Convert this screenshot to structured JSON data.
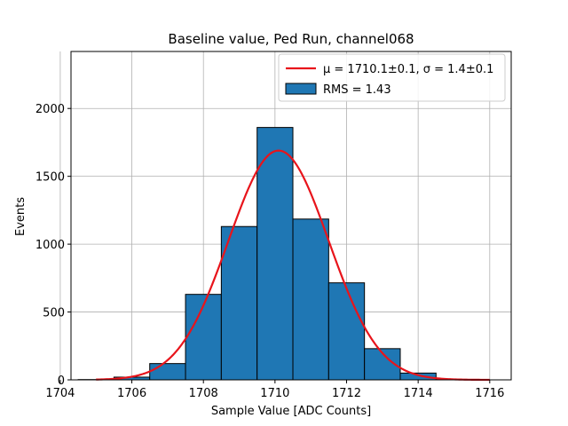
{
  "chart_data": {
    "type": "bar",
    "title": "Baseline value, Ped Run, channel068",
    "xlabel": "Sample Value [ADC Counts]",
    "ylabel": "Events",
    "xlim": [
      1704.3,
      1716.6
    ],
    "ylim": [
      0,
      2420
    ],
    "xticks": [
      1704,
      1706,
      1708,
      1710,
      1712,
      1714,
      1716
    ],
    "yticks": [
      0,
      500,
      1000,
      1500,
      2000
    ],
    "grid": true,
    "legend_position": "top-right",
    "histogram": {
      "name": "RMS = 1.43",
      "color": "#1f77b4",
      "edge_color": "#000000",
      "bin_width": 1,
      "bins": [
        {
          "x": 1705,
          "value": 2
        },
        {
          "x": 1706,
          "value": 20
        },
        {
          "x": 1707,
          "value": 120
        },
        {
          "x": 1708,
          "value": 630
        },
        {
          "x": 1709,
          "value": 1130
        },
        {
          "x": 1710,
          "value": 1860
        },
        {
          "x": 1711,
          "value": 1185
        },
        {
          "x": 1712,
          "value": 715
        },
        {
          "x": 1713,
          "value": 230
        },
        {
          "x": 1714,
          "value": 50
        },
        {
          "x": 1715,
          "value": 3
        }
      ]
    },
    "fit": {
      "name": "μ = 1710.1±0.1, σ = 1.4±0.1",
      "color": "#e8141b",
      "type": "gaussian",
      "mu": 1710.1,
      "sigma": 1.4,
      "amplitude": 1690,
      "x_range": [
        1705,
        1716
      ]
    }
  }
}
